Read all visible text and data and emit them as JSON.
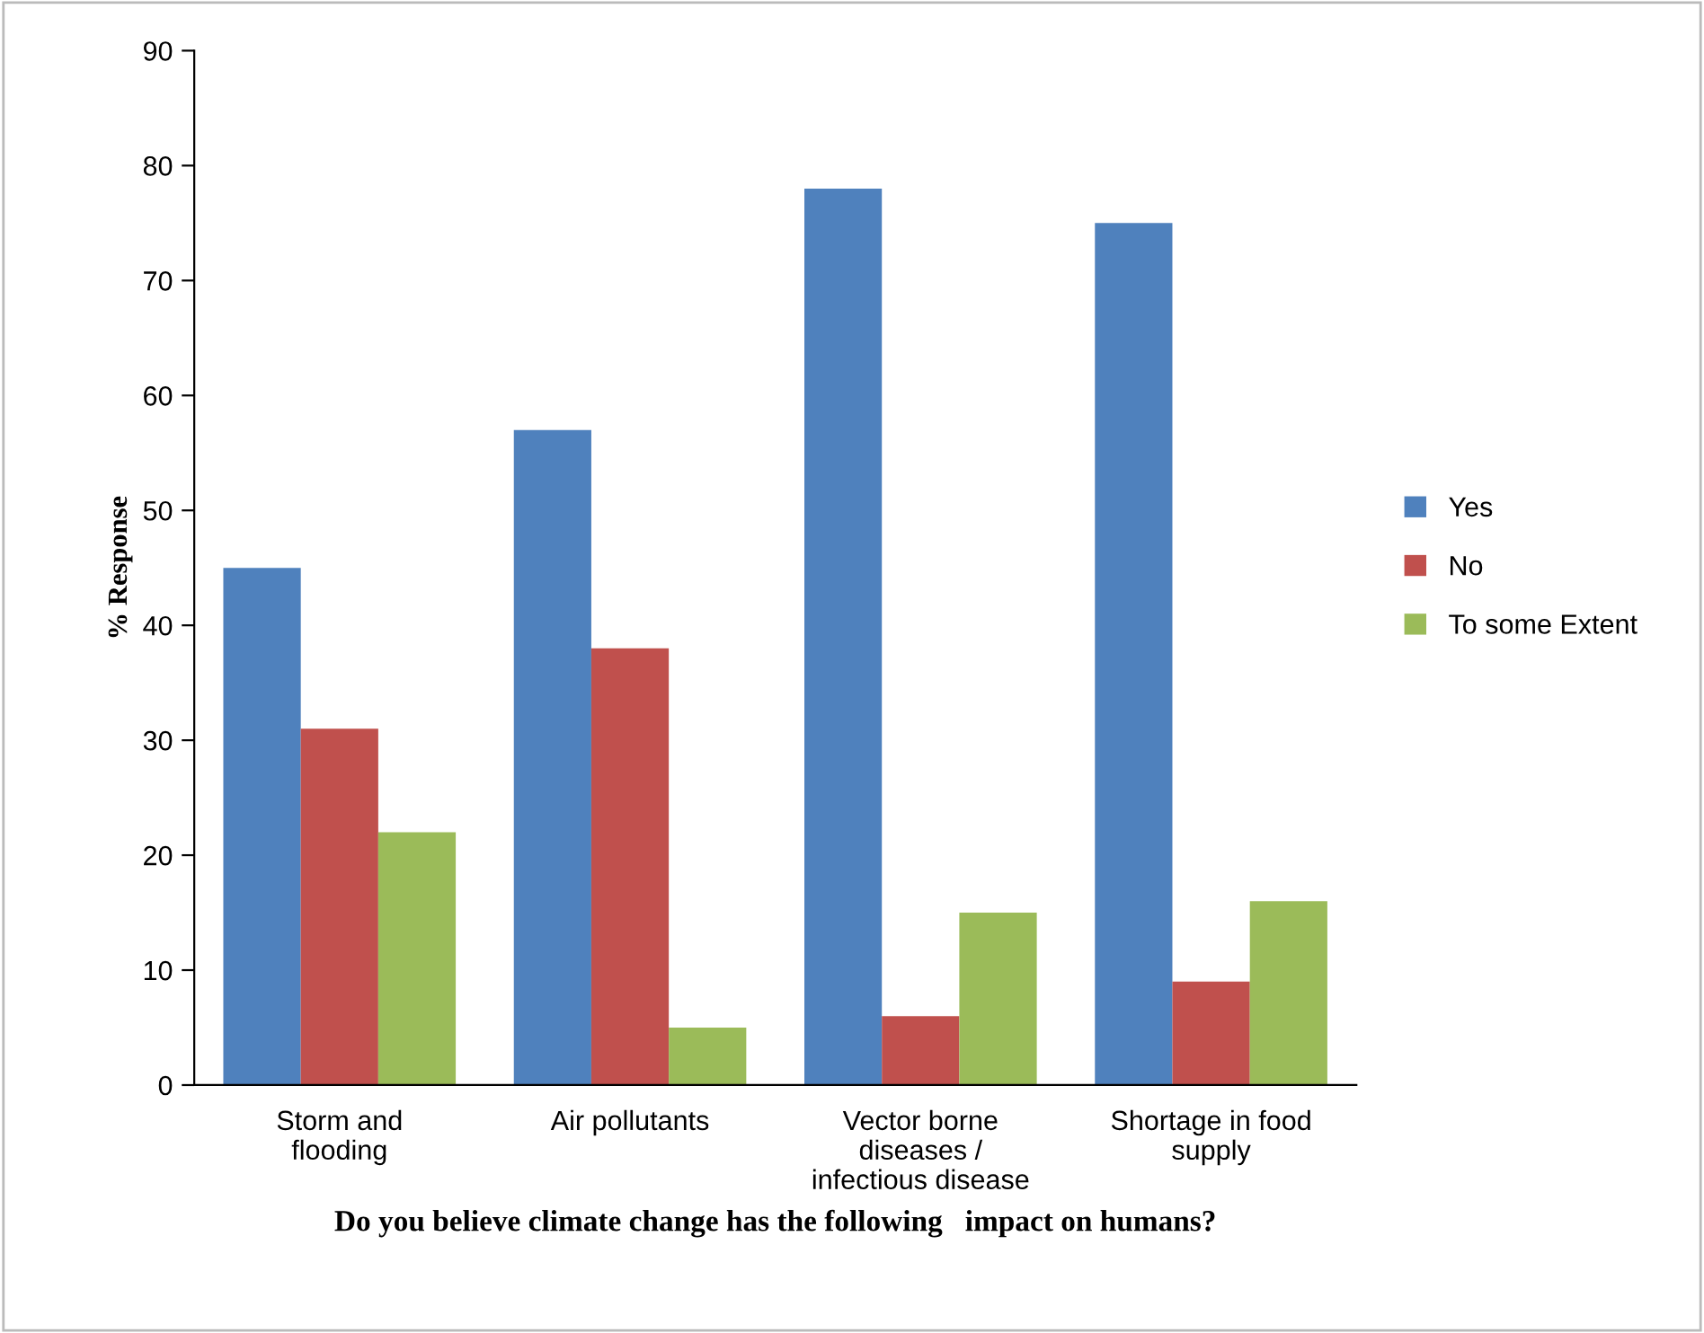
{
  "chart_data": {
    "type": "bar",
    "categories": [
      "Storm and\nflooding",
      "Air pollutants",
      "Vector borne\ndiseases /\ninfectious disease",
      "Shortage in food\nsupply"
    ],
    "series": [
      {
        "name": "Yes",
        "color": "#4f81bd",
        "values": [
          45,
          57,
          78,
          75
        ]
      },
      {
        "name": "No",
        "color": "#c0504d",
        "values": [
          31,
          38,
          6,
          9
        ]
      },
      {
        "name": "To some Extent",
        "color": "#9bbb59",
        "values": [
          22,
          5,
          15,
          16
        ]
      }
    ],
    "xlabel": "Do you believe climate change has the following   impact on humans?",
    "ylabel": "% Response",
    "ylim": [
      0,
      90
    ],
    "yticks": [
      0,
      10,
      20,
      30,
      40,
      50,
      60,
      70,
      80,
      90
    ],
    "grid": false,
    "legend": "right"
  }
}
